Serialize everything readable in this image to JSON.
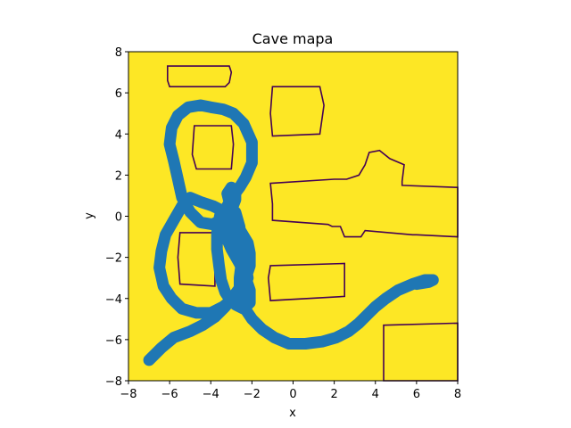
{
  "chart_data": {
    "type": "heatmap",
    "title": "Cave mapa",
    "xlabel": "x",
    "ylabel": "y",
    "xlim": [
      -8,
      8
    ],
    "ylim": [
      -8,
      8
    ],
    "x_ticks": [
      -8,
      -6,
      -4,
      -2,
      0,
      2,
      4,
      6,
      8
    ],
    "y_ticks": [
      -8,
      -6,
      -4,
      -2,
      0,
      2,
      4,
      6,
      8
    ],
    "x_tick_labels": [
      "−8",
      "−6",
      "−4",
      "−2",
      "0",
      "2",
      "4",
      "6",
      "8"
    ],
    "y_tick_labels": [
      "−8",
      "−6",
      "−4",
      "−2",
      "0",
      "2",
      "4",
      "6",
      "8"
    ],
    "colors": {
      "background": "#fde725",
      "obstacle": "#fde725",
      "obstacle_outline": "#440154",
      "path": "#1f77b4"
    },
    "obstacles": [
      [
        [
          -6.1,
          7.3
        ],
        [
          -3.1,
          7.3
        ],
        [
          -3.0,
          7.0
        ],
        [
          -3.1,
          6.5
        ],
        [
          -3.3,
          6.3
        ],
        [
          -6.0,
          6.3
        ],
        [
          -6.1,
          6.6
        ]
      ],
      [
        [
          -4.8,
          4.4
        ],
        [
          -3.0,
          4.4
        ],
        [
          -2.9,
          3.5
        ],
        [
          -3.0,
          2.3
        ],
        [
          -4.7,
          2.3
        ],
        [
          -4.9,
          3.0
        ]
      ],
      [
        [
          -1.0,
          6.3
        ],
        [
          1.3,
          6.3
        ],
        [
          1.5,
          5.4
        ],
        [
          1.3,
          4.0
        ],
        [
          -1.0,
          3.9
        ],
        [
          -1.1,
          5.0
        ]
      ],
      [
        [
          -5.5,
          -0.8
        ],
        [
          -3.8,
          -0.8
        ],
        [
          -3.8,
          -3.4
        ],
        [
          -5.5,
          -3.3
        ],
        [
          -5.6,
          -2.0
        ]
      ],
      [
        [
          -1.1,
          1.6
        ],
        [
          2.0,
          1.8
        ],
        [
          2.6,
          1.8
        ],
        [
          3.2,
          2.0
        ],
        [
          3.5,
          2.5
        ],
        [
          3.7,
          3.1
        ],
        [
          4.2,
          3.2
        ],
        [
          4.7,
          2.8
        ],
        [
          5.4,
          2.5
        ],
        [
          5.3,
          1.7
        ],
        [
          5.3,
          1.5
        ],
        [
          8.0,
          1.4
        ],
        [
          8.0,
          -1.0
        ],
        [
          6.0,
          -0.9
        ],
        [
          5.8,
          -0.9
        ],
        [
          3.5,
          -0.7
        ],
        [
          3.3,
          -1.0
        ],
        [
          2.5,
          -1.0
        ],
        [
          2.3,
          -0.5
        ],
        [
          1.9,
          -0.5
        ],
        [
          1.7,
          -0.4
        ],
        [
          -1.0,
          -0.2
        ],
        [
          -1.0,
          0.6
        ]
      ],
      [
        [
          -1.1,
          -2.4
        ],
        [
          2.5,
          -2.3
        ],
        [
          2.5,
          -3.9
        ],
        [
          -1.1,
          -4.1
        ],
        [
          -1.2,
          -3.0
        ]
      ],
      [
        [
          4.4,
          -5.3
        ],
        [
          8.0,
          -5.2
        ],
        [
          8.0,
          -8.0
        ],
        [
          4.4,
          -8.0
        ]
      ]
    ],
    "path": [
      [
        -7.0,
        -7.0
      ],
      [
        -6.4,
        -6.4
      ],
      [
        -5.8,
        -5.9
      ],
      [
        -5.0,
        -5.6
      ],
      [
        -4.4,
        -5.3
      ],
      [
        -3.8,
        -4.9
      ],
      [
        -3.3,
        -4.4
      ],
      [
        -2.9,
        -3.9
      ],
      [
        -2.6,
        -3.5
      ],
      [
        -2.3,
        -3.0
      ],
      [
        -2.1,
        -2.4
      ],
      [
        -2.1,
        -1.8
      ],
      [
        -2.2,
        -1.3
      ],
      [
        -2.5,
        -0.8
      ],
      [
        -2.8,
        -0.3
      ],
      [
        -3.0,
        0.2
      ],
      [
        -3.1,
        0.7
      ],
      [
        -3.2,
        1.1
      ],
      [
        -3.0,
        1.4
      ],
      [
        -2.8,
        1.2
      ],
      [
        -2.8,
        0.8
      ],
      [
        -3.0,
        0.3
      ],
      [
        -3.4,
        -0.1
      ],
      [
        -3.9,
        -0.4
      ],
      [
        -4.5,
        -0.3
      ],
      [
        -5.0,
        0.2
      ],
      [
        -5.4,
        0.9
      ],
      [
        -5.6,
        1.8
      ],
      [
        -5.8,
        2.7
      ],
      [
        -6.0,
        3.5
      ],
      [
        -5.9,
        4.3
      ],
      [
        -5.6,
        4.9
      ],
      [
        -5.1,
        5.3
      ],
      [
        -4.5,
        5.4
      ],
      [
        -4.0,
        5.3
      ],
      [
        -3.4,
        5.2
      ],
      [
        -2.9,
        5.0
      ],
      [
        -2.4,
        4.5
      ],
      [
        -2.0,
        3.6
      ],
      [
        -2.0,
        2.6
      ],
      [
        -2.3,
        1.9
      ],
      [
        -2.6,
        1.4
      ],
      [
        -2.9,
        1.0
      ],
      [
        -3.2,
        0.5
      ],
      [
        -3.4,
        -0.2
      ],
      [
        -3.3,
        -0.9
      ],
      [
        -3.0,
        -1.6
      ],
      [
        -2.6,
        -2.3
      ],
      [
        -2.3,
        -3.0
      ],
      [
        -2.1,
        -3.6
      ],
      [
        -2.1,
        -4.2
      ],
      [
        -2.4,
        -4.5
      ],
      [
        -2.8,
        -4.3
      ],
      [
        -3.1,
        -4.0
      ],
      [
        -3.3,
        -3.7
      ],
      [
        -3.4,
        -3.4
      ],
      [
        -3.5,
        -3.1
      ],
      [
        -3.6,
        -2.4
      ],
      [
        -3.7,
        -1.6
      ],
      [
        -3.7,
        -0.8
      ],
      [
        -3.6,
        -0.2
      ],
      [
        -3.5,
        0.3
      ],
      [
        -3.9,
        0.5
      ],
      [
        -4.5,
        0.7
      ],
      [
        -5.0,
        0.9
      ],
      [
        -5.4,
        0.5
      ],
      [
        -5.8,
        -0.2
      ],
      [
        -6.2,
        -0.9
      ],
      [
        -6.4,
        -1.7
      ],
      [
        -6.5,
        -2.5
      ],
      [
        -6.3,
        -3.4
      ],
      [
        -5.9,
        -4.0
      ],
      [
        -5.4,
        -4.5
      ],
      [
        -4.7,
        -4.7
      ],
      [
        -4.0,
        -4.7
      ],
      [
        -3.4,
        -4.4
      ],
      [
        -2.9,
        -4.0
      ],
      [
        -2.4,
        -3.5
      ],
      [
        -2.2,
        -3.0
      ],
      [
        -2.3,
        -2.4
      ],
      [
        -2.6,
        -1.8
      ],
      [
        -2.9,
        -1.2
      ],
      [
        -3.2,
        -0.6
      ],
      [
        -3.3,
        -0.1
      ],
      [
        -3.1,
        0.4
      ],
      [
        -2.8,
        0.2
      ],
      [
        -2.6,
        -0.5
      ],
      [
        -2.5,
        -1.3
      ],
      [
        -2.5,
        -2.2
      ],
      [
        -2.6,
        -3.0
      ],
      [
        -2.6,
        -3.8
      ],
      [
        -2.4,
        -4.4
      ],
      [
        -2.0,
        -5.0
      ],
      [
        -1.5,
        -5.5
      ],
      [
        -0.9,
        -5.9
      ],
      [
        -0.2,
        -6.2
      ],
      [
        0.6,
        -6.2
      ],
      [
        1.4,
        -6.1
      ],
      [
        2.1,
        -5.9
      ],
      [
        2.7,
        -5.6
      ],
      [
        3.2,
        -5.2
      ],
      [
        3.6,
        -4.8
      ],
      [
        4.0,
        -4.4
      ],
      [
        4.5,
        -4.0
      ],
      [
        5.1,
        -3.6
      ],
      [
        5.8,
        -3.3
      ],
      [
        6.4,
        -3.1
      ],
      [
        6.8,
        -3.1
      ],
      [
        6.6,
        -3.2
      ],
      [
        6.0,
        -3.3
      ]
    ]
  }
}
